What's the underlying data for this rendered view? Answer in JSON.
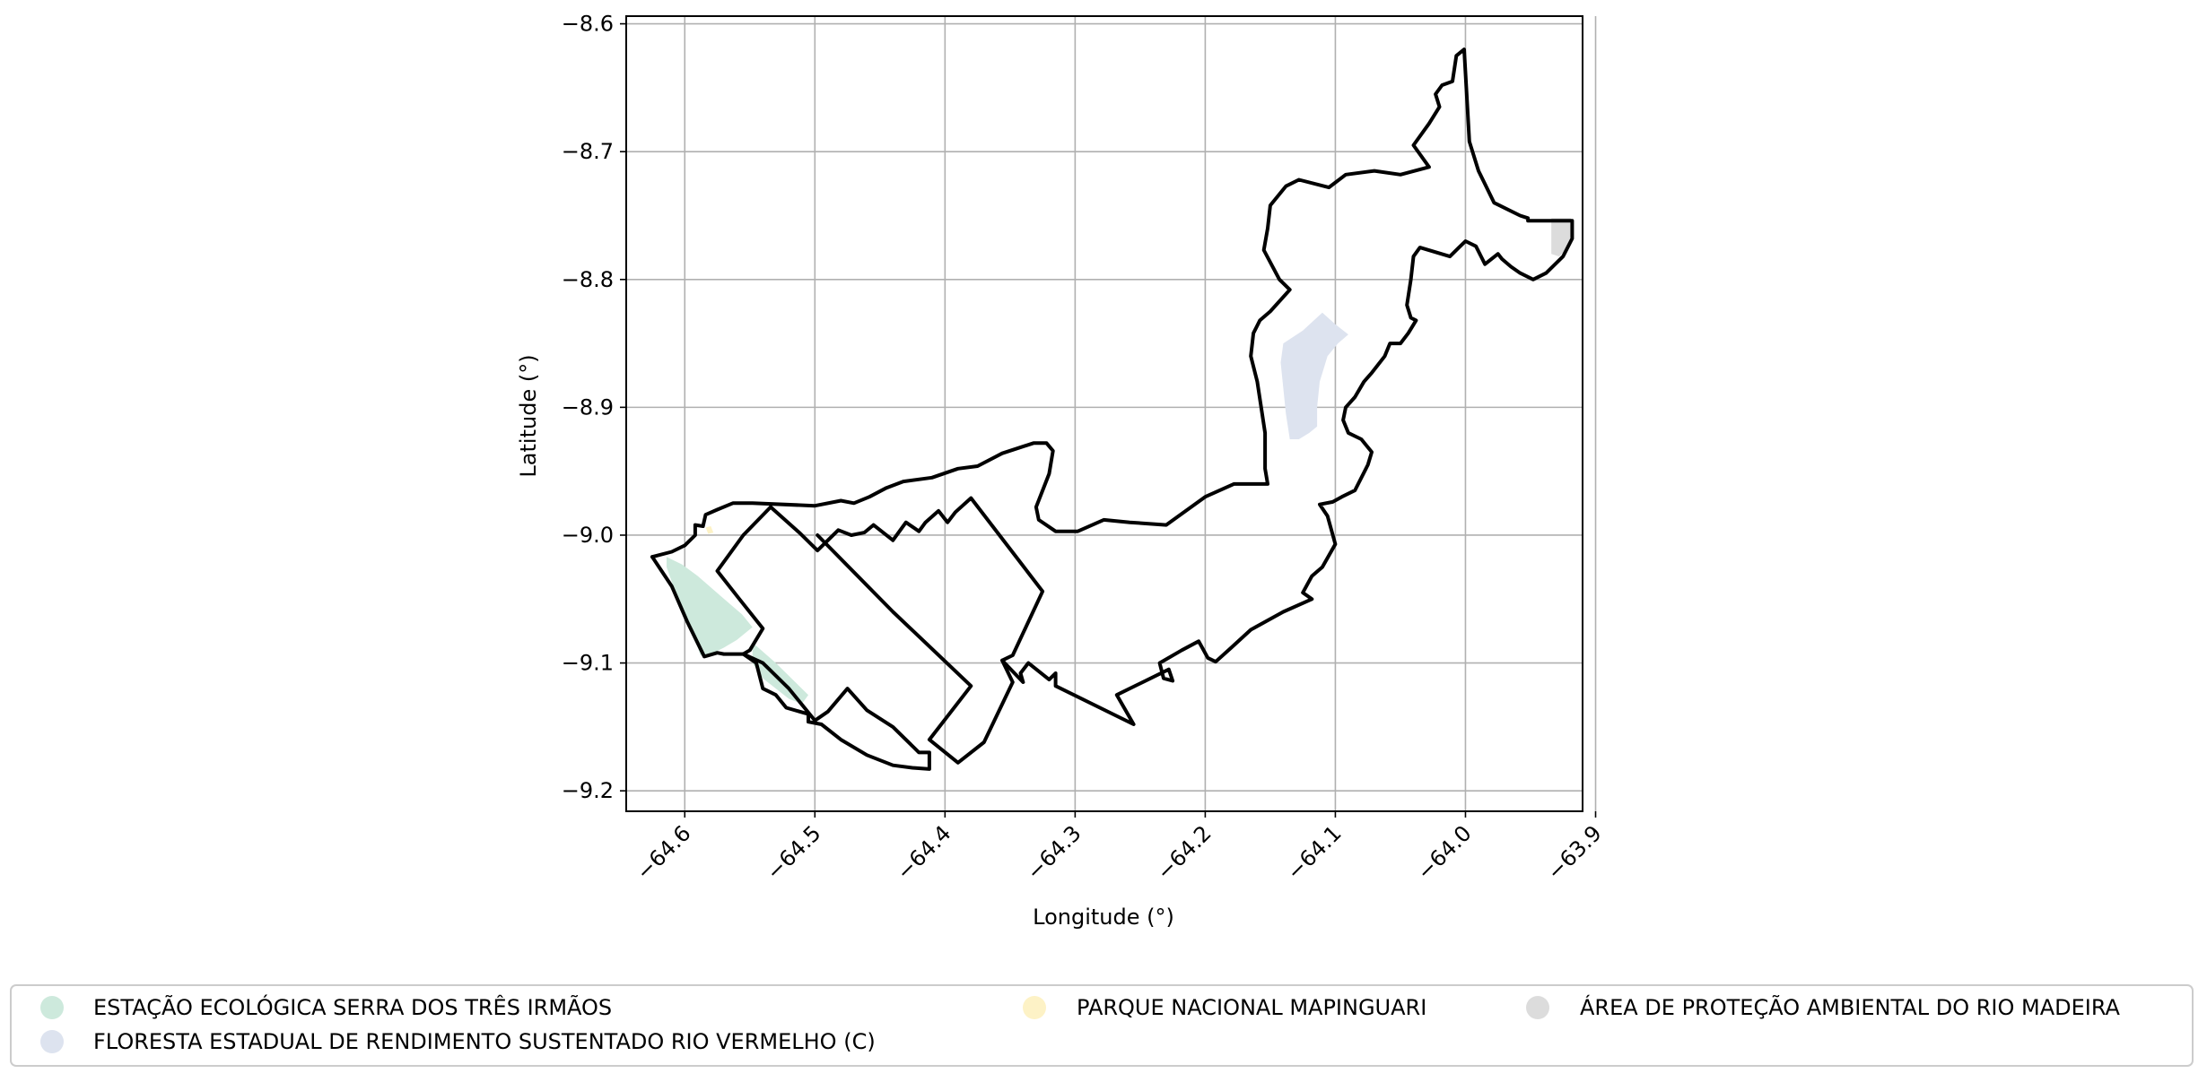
{
  "map": {
    "xlabel": "Longitude (°)",
    "ylabel": "Latitude (°)",
    "xlim": [
      -64.645,
      -63.91
    ],
    "ylim": [
      -9.216,
      -8.594
    ],
    "x_ticks": [
      {
        "value": -64.6,
        "label": "−64.6"
      },
      {
        "value": -64.5,
        "label": "−64.5"
      },
      {
        "value": -64.4,
        "label": "−64.4"
      },
      {
        "value": -64.3,
        "label": "−64.3"
      },
      {
        "value": -64.2,
        "label": "−64.2"
      },
      {
        "value": -64.1,
        "label": "−64.1"
      },
      {
        "value": -64.0,
        "label": "−64.0"
      },
      {
        "value": -63.9,
        "label": "−63.9"
      }
    ],
    "y_ticks": [
      {
        "value": -8.6,
        "label": "−8.6"
      },
      {
        "value": -8.7,
        "label": "−8.7"
      },
      {
        "value": -8.8,
        "label": "−8.8"
      },
      {
        "value": -8.9,
        "label": "−8.9"
      },
      {
        "value": -9.0,
        "label": "−9.0"
      },
      {
        "value": -9.1,
        "label": "−9.1"
      },
      {
        "value": -9.2,
        "label": "−9.2"
      }
    ],
    "grid": true,
    "legend_position": "bottom"
  },
  "legend": {
    "items": [
      {
        "label": "ESTAÇÃO ECOLÓGICA SERRA DOS TRÊS IRMÃOS",
        "color": "#cde9dc"
      },
      {
        "label": "FLORESTA ESTADUAL DE RENDIMENTO SUSTENTADO RIO VERMELHO (C)",
        "color": "#dde3ef"
      },
      {
        "label": "PARQUE NACIONAL MAPINGUARI",
        "color": "#fdf2c6"
      },
      {
        "label": "ÁREA DE PROTEÇÃO AMBIENTAL DO RIO MADEIRA",
        "color": "#dcdcdc"
      }
    ]
  },
  "layers": {
    "protected_areas": [
      {
        "name": "ESTAÇÃO ECOLÓGICA SERRA DOS TRÊS IRMÃOS",
        "color": "#cde9dc",
        "rings": [
          [
            [
              -64.614,
              -9.017
            ],
            [
              -64.602,
              -9.023
            ],
            [
              -64.59,
              -9.032
            ],
            [
              -64.572,
              -9.048
            ],
            [
              -64.556,
              -9.062
            ],
            [
              -64.548,
              -9.072
            ],
            [
              -64.56,
              -9.082
            ],
            [
              -64.57,
              -9.088
            ],
            [
              -64.578,
              -9.092
            ],
            [
              -64.588,
              -9.094
            ],
            [
              -64.59,
              -9.088
            ],
            [
              -64.598,
              -9.07
            ],
            [
              -64.606,
              -9.048
            ],
            [
              -64.614,
              -9.025
            ]
          ],
          [
            [
              -64.548,
              -9.084
            ],
            [
              -64.53,
              -9.1
            ],
            [
              -64.515,
              -9.115
            ],
            [
              -64.505,
              -9.125
            ],
            [
              -64.51,
              -9.132
            ],
            [
              -64.52,
              -9.128
            ],
            [
              -64.53,
              -9.12
            ],
            [
              -64.54,
              -9.112
            ],
            [
              -64.548,
              -9.1
            ]
          ]
        ]
      },
      {
        "name": "FLORESTA ESTADUAL DE RENDIMENTO SUSTENTADO RIO VERMELHO (C)",
        "color": "#dde3ef",
        "rings": [
          [
            [
              -64.14,
              -8.85
            ],
            [
              -64.125,
              -8.84
            ],
            [
              -64.11,
              -8.826
            ],
            [
              -64.1,
              -8.835
            ],
            [
              -64.09,
              -8.843
            ],
            [
              -64.098,
              -8.85
            ],
            [
              -64.106,
              -8.86
            ],
            [
              -64.112,
              -8.88
            ],
            [
              -64.114,
              -8.9
            ],
            [
              -64.114,
              -8.915
            ],
            [
              -64.12,
              -8.92
            ],
            [
              -64.128,
              -8.925
            ],
            [
              -64.135,
              -8.925
            ],
            [
              -64.138,
              -8.905
            ],
            [
              -64.14,
              -8.885
            ],
            [
              -64.142,
              -8.865
            ]
          ]
        ]
      },
      {
        "name": "PARQUE NACIONAL MAPINGUARI",
        "color": "#fdf2c6",
        "rings": [
          [
            [
              -64.584,
              -8.994
            ],
            [
              -64.582,
              -8.999
            ],
            [
              -64.578,
              -8.998
            ],
            [
              -64.58,
              -8.993
            ]
          ]
        ]
      },
      {
        "name": "ÁREA DE PROTEÇÃO AMBIENTAL DO RIO MADEIRA",
        "color": "#dcdcdc",
        "rings": [
          [
            [
              -63.934,
              -8.752
            ],
            [
              -63.919,
              -8.752
            ],
            [
              -63.918,
              -8.765
            ],
            [
              -63.922,
              -8.776
            ],
            [
              -63.928,
              -8.782
            ],
            [
              -63.934,
              -8.78
            ]
          ]
        ]
      }
    ],
    "boundaries": [
      [
        [
          -64.625,
          -9.017
        ],
        [
          -64.61,
          -9.013
        ],
        [
          -64.6,
          -9.008
        ],
        [
          -64.592,
          -9.0
        ],
        [
          -64.592,
          -8.992
        ],
        [
          -64.586,
          -8.993
        ],
        [
          -64.584,
          -8.984
        ],
        [
          -64.575,
          -8.98
        ],
        [
          -64.563,
          -8.975
        ],
        [
          -64.548,
          -8.975
        ],
        [
          -64.5,
          -8.977
        ],
        [
          -64.48,
          -8.973
        ],
        [
          -64.47,
          -8.975
        ],
        [
          -64.458,
          -8.97
        ],
        [
          -64.445,
          -8.963
        ],
        [
          -64.432,
          -8.958
        ],
        [
          -64.41,
          -8.955
        ],
        [
          -64.39,
          -8.948
        ],
        [
          -64.375,
          -8.946
        ],
        [
          -64.356,
          -8.936
        ],
        [
          -64.332,
          -8.928
        ],
        [
          -64.322,
          -8.928
        ],
        [
          -64.317,
          -8.934
        ],
        [
          -64.32,
          -8.952
        ],
        [
          -64.33,
          -8.978
        ],
        [
          -64.328,
          -8.988
        ],
        [
          -64.315,
          -8.997
        ],
        [
          -64.298,
          -8.997
        ],
        [
          -64.278,
          -8.988
        ],
        [
          -64.258,
          -8.99
        ],
        [
          -64.23,
          -8.992
        ],
        [
          -64.2,
          -8.97
        ],
        [
          -64.178,
          -8.96
        ],
        [
          -64.152,
          -8.96
        ],
        [
          -64.154,
          -8.948
        ],
        [
          -64.154,
          -8.92
        ],
        [
          -64.16,
          -8.88
        ],
        [
          -64.165,
          -8.86
        ],
        [
          -64.163,
          -8.842
        ],
        [
          -64.158,
          -8.832
        ],
        [
          -64.15,
          -8.825
        ],
        [
          -64.135,
          -8.808
        ],
        [
          -64.143,
          -8.8
        ],
        [
          -64.155,
          -8.777
        ],
        [
          -64.152,
          -8.76
        ],
        [
          -64.15,
          -8.742
        ],
        [
          -64.138,
          -8.727
        ],
        [
          -64.128,
          -8.722
        ],
        [
          -64.105,
          -8.728
        ],
        [
          -64.092,
          -8.718
        ],
        [
          -64.07,
          -8.715
        ],
        [
          -64.05,
          -8.718
        ],
        [
          -64.028,
          -8.712
        ],
        [
          -64.04,
          -8.695
        ],
        [
          -64.028,
          -8.678
        ],
        [
          -64.02,
          -8.665
        ],
        [
          -64.023,
          -8.655
        ],
        [
          -64.018,
          -8.648
        ],
        [
          -64.01,
          -8.645
        ],
        [
          -64.007,
          -8.625
        ],
        [
          -64.001,
          -8.62
        ],
        [
          -63.997,
          -8.692
        ],
        [
          -63.99,
          -8.715
        ],
        [
          -63.978,
          -8.74
        ],
        [
          -63.958,
          -8.75
        ],
        [
          -63.952,
          -8.752
        ],
        [
          -63.952,
          -8.754
        ],
        [
          -63.932,
          -8.754
        ],
        [
          -63.918,
          -8.754
        ],
        [
          -63.918,
          -8.768
        ],
        [
          -63.925,
          -8.782
        ],
        [
          -63.938,
          -8.795
        ],
        [
          -63.948,
          -8.8
        ],
        [
          -63.958,
          -8.795
        ],
        [
          -63.965,
          -8.79
        ],
        [
          -63.972,
          -8.784
        ],
        [
          -63.975,
          -8.78
        ],
        [
          -63.985,
          -8.788
        ],
        [
          -63.992,
          -8.774
        ],
        [
          -64.0,
          -8.77
        ],
        [
          -64.005,
          -8.775
        ],
        [
          -64.012,
          -8.782
        ],
        [
          -64.035,
          -8.775
        ],
        [
          -64.04,
          -8.782
        ],
        [
          -64.042,
          -8.8
        ],
        [
          -64.045,
          -8.82
        ],
        [
          -64.042,
          -8.83
        ],
        [
          -64.038,
          -8.832
        ],
        [
          -64.044,
          -8.842
        ],
        [
          -64.05,
          -8.85
        ],
        [
          -64.058,
          -8.85
        ],
        [
          -64.062,
          -8.86
        ],
        [
          -64.072,
          -8.873
        ],
        [
          -64.078,
          -8.88
        ],
        [
          -64.085,
          -8.892
        ],
        [
          -64.092,
          -8.9
        ],
        [
          -64.094,
          -8.91
        ],
        [
          -64.09,
          -8.92
        ],
        [
          -64.08,
          -8.925
        ],
        [
          -64.072,
          -8.935
        ],
        [
          -64.075,
          -8.945
        ],
        [
          -64.085,
          -8.965
        ],
        [
          -64.095,
          -8.97
        ],
        [
          -64.102,
          -8.974
        ],
        [
          -64.112,
          -8.976
        ],
        [
          -64.106,
          -8.985
        ],
        [
          -64.1,
          -9.007
        ],
        [
          -64.11,
          -9.025
        ],
        [
          -64.118,
          -9.032
        ],
        [
          -64.125,
          -9.045
        ],
        [
          -64.118,
          -9.05
        ],
        [
          -64.14,
          -9.06
        ],
        [
          -64.165,
          -9.074
        ],
        [
          -64.18,
          -9.088
        ],
        [
          -64.192,
          -9.099
        ],
        [
          -64.198,
          -9.096
        ],
        [
          -64.205,
          -9.083
        ],
        [
          -64.218,
          -9.09
        ],
        [
          -64.235,
          -9.1
        ],
        [
          -64.232,
          -9.112
        ],
        [
          -64.225,
          -9.114
        ],
        [
          -64.228,
          -9.105
        ],
        [
          -64.268,
          -9.125
        ],
        [
          -64.255,
          -9.148
        ],
        [
          -64.315,
          -9.118
        ],
        [
          -64.315,
          -9.108
        ],
        [
          -64.32,
          -9.113
        ],
        [
          -64.336,
          -9.1
        ],
        [
          -64.342,
          -9.108
        ],
        [
          -64.34,
          -9.115
        ],
        [
          -64.356,
          -9.098
        ],
        [
          -64.348,
          -9.094
        ],
        [
          -64.325,
          -9.044
        ],
        [
          -64.38,
          -8.971
        ],
        [
          -64.392,
          -8.982
        ],
        [
          -64.398,
          -8.99
        ],
        [
          -64.405,
          -8.981
        ],
        [
          -64.415,
          -8.99
        ],
        [
          -64.42,
          -8.997
        ],
        [
          -64.43,
          -8.99
        ],
        [
          -64.44,
          -9.004
        ],
        [
          -64.455,
          -8.992
        ],
        [
          -64.462,
          -8.998
        ],
        [
          -64.472,
          -9.0
        ],
        [
          -64.482,
          -8.996
        ],
        [
          -64.498,
          -9.012
        ],
        [
          -64.512,
          -8.998
        ],
        [
          -64.534,
          -8.978
        ]
      ],
      [
        [
          -64.534,
          -8.978
        ],
        [
          -64.555,
          -9.0
        ],
        [
          -64.575,
          -9.028
        ],
        [
          -64.558,
          -9.05
        ],
        [
          -64.54,
          -9.073
        ],
        [
          -64.55,
          -9.09
        ],
        [
          -64.555,
          -9.093
        ],
        [
          -64.57,
          -9.093
        ],
        [
          -64.575,
          -9.092
        ],
        [
          -64.585,
          -9.095
        ],
        [
          -64.598,
          -9.068
        ],
        [
          -64.61,
          -9.04
        ],
        [
          -64.625,
          -9.017
        ]
      ],
      [
        [
          -64.555,
          -9.093
        ],
        [
          -64.545,
          -9.1
        ],
        [
          -64.54,
          -9.12
        ],
        [
          -64.53,
          -9.125
        ],
        [
          -64.522,
          -9.135
        ],
        [
          -64.505,
          -9.14
        ],
        [
          -64.505,
          -9.146
        ],
        [
          -64.495,
          -9.148
        ],
        [
          -64.48,
          -9.16
        ],
        [
          -64.46,
          -9.172
        ],
        [
          -64.44,
          -9.18
        ],
        [
          -64.425,
          -9.182
        ],
        [
          -64.412,
          -9.183
        ],
        [
          -64.412,
          -9.17
        ],
        [
          -64.42,
          -9.17
        ],
        [
          -64.44,
          -9.15
        ],
        [
          -64.46,
          -9.137
        ],
        [
          -64.475,
          -9.12
        ],
        [
          -64.49,
          -9.138
        ],
        [
          -64.5,
          -9.145
        ],
        [
          -64.508,
          -9.135
        ],
        [
          -64.52,
          -9.12
        ],
        [
          -64.53,
          -9.11
        ],
        [
          -64.54,
          -9.1
        ],
        [
          -64.555,
          -9.093
        ]
      ],
      [
        [
          -64.498,
          -9.0
        ],
        [
          -64.44,
          -9.06
        ],
        [
          -64.38,
          -9.118
        ],
        [
          -64.412,
          -9.16
        ],
        [
          -64.39,
          -9.178
        ],
        [
          -64.37,
          -9.162
        ],
        [
          -64.348,
          -9.115
        ],
        [
          -64.356,
          -9.098
        ]
      ]
    ]
  }
}
